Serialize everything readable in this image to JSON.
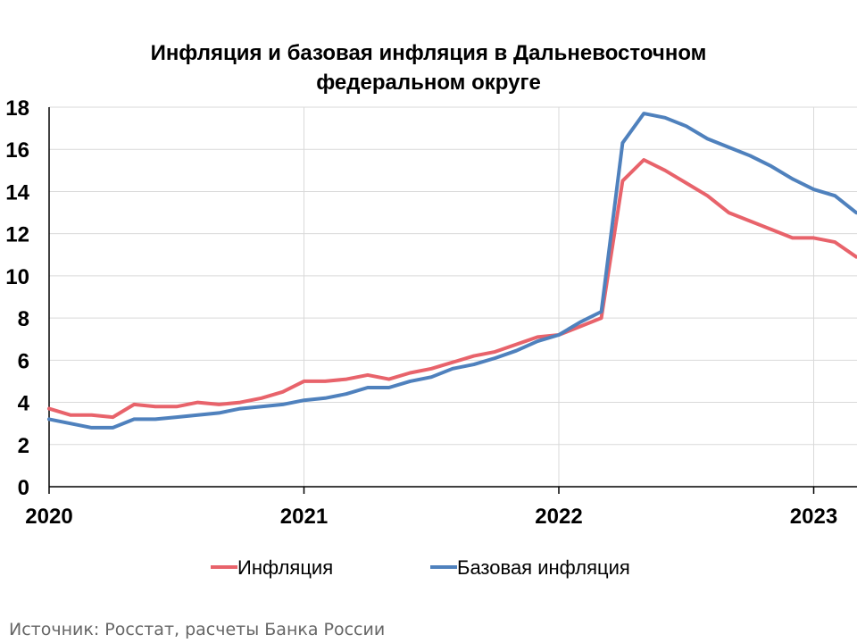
{
  "chart_data": {
    "type": "line",
    "title_lines": [
      "Инфляция и базовая инфляция в Дальневосточном",
      "федеральном округе"
    ],
    "x_start_year": 2020,
    "x_end_year": 2023.1667,
    "x_tick_labels": [
      "2020",
      "2021",
      "2022",
      "2023"
    ],
    "ylim": [
      0,
      18
    ],
    "y_ticks": [
      0,
      2,
      4,
      6,
      8,
      10,
      12,
      14,
      16,
      18
    ],
    "grid": true,
    "legend_position": "bottom",
    "series": [
      {
        "name": "Инфляция",
        "color": "#e8636b",
        "values": [
          3.7,
          3.4,
          3.4,
          3.3,
          3.9,
          3.8,
          3.8,
          4.0,
          3.9,
          4.0,
          4.2,
          4.5,
          5.0,
          5.0,
          5.1,
          5.3,
          5.1,
          5.4,
          5.6,
          5.9,
          6.2,
          6.4,
          6.75,
          7.1,
          7.2,
          7.6,
          8.0,
          14.5,
          15.5,
          15.0,
          14.4,
          13.8,
          13.0,
          12.6,
          12.2,
          11.8,
          11.8,
          11.6,
          10.9
        ]
      },
      {
        "name": "Базовая инфляция",
        "color": "#4f81bd",
        "values": [
          3.2,
          3.0,
          2.8,
          2.8,
          3.2,
          3.2,
          3.3,
          3.4,
          3.5,
          3.7,
          3.8,
          3.9,
          4.1,
          4.2,
          4.4,
          4.7,
          4.7,
          5.0,
          5.2,
          5.6,
          5.8,
          6.1,
          6.45,
          6.9,
          7.2,
          7.8,
          8.3,
          16.3,
          17.7,
          17.5,
          17.1,
          16.5,
          16.1,
          15.7,
          15.2,
          14.6,
          14.1,
          13.8,
          13.0
        ]
      }
    ]
  },
  "source": "Источник: Росстат, расчеты Банка России"
}
